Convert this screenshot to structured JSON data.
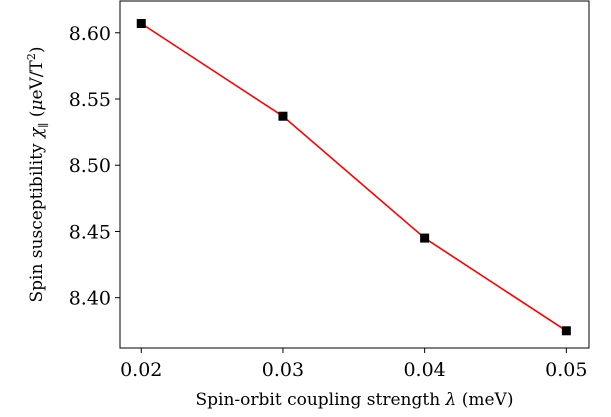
{
  "chart_data": {
    "type": "line",
    "x": [
      0.02,
      0.03,
      0.04,
      0.05
    ],
    "y": [
      8.607,
      8.537,
      8.445,
      8.375
    ],
    "xticks": [
      "0.02",
      "0.03",
      "0.04",
      "0.05"
    ],
    "yticks": [
      "8.40",
      "8.45",
      "8.50",
      "8.55",
      "8.60"
    ],
    "xlim": [
      0.0185,
      0.0516
    ],
    "ylim": [
      8.362,
      8.624
    ],
    "xlabel": {
      "prefix": "Spin-orbit coupling strength ",
      "symbol": "λ",
      "suffix": " (meV)"
    },
    "ylabel": {
      "prefix": "Spin susceptibility ",
      "symbol": "χ",
      "subscript": "∥",
      "units_open": "  (",
      "mu": "μ",
      "units_mid": "eV/T",
      "superscript": "2",
      "units_close": ")"
    },
    "line_color": "#ff0000",
    "marker_color": "#000000",
    "marker": "square",
    "grid": false,
    "legend": false
  }
}
